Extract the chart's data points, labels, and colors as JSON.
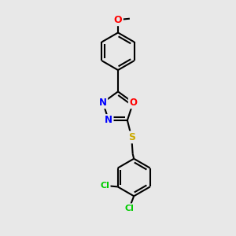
{
  "background_color": "#e8e8e8",
  "bond_color": "#000000",
  "bond_width": 1.5,
  "atom_colors": {
    "N": "#0000ff",
    "O": "#ff0000",
    "S": "#ccaa00",
    "Cl": "#00cc00"
  },
  "figsize": [
    3.0,
    3.0
  ],
  "dpi": 100
}
